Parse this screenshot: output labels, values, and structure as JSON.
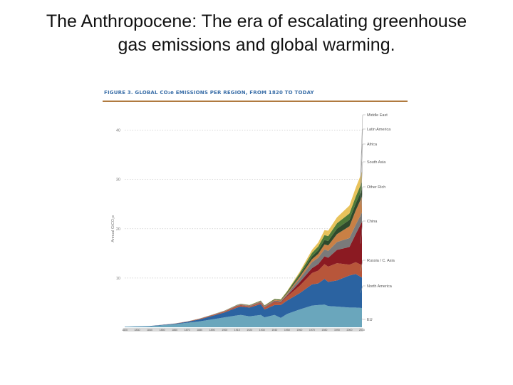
{
  "slide": {
    "title_line1": "The Anthropocene: The era of escalating greenhouse",
    "title_line2": "gas emissions and global warming."
  },
  "chart_data": {
    "type": "area",
    "stacked": true,
    "title": "FIGURE 3. GLOBAL CO₂e EMISSIONS PER REGION, FROM 1820 TO TODAY",
    "ylabel": "Annual GtCO₂e",
    "xlabel": "",
    "xlim": [
      1820,
      2010
    ],
    "ylim": [
      0,
      45
    ],
    "yticks": [
      10,
      20,
      30,
      40
    ],
    "xticks": [
      1820,
      1830,
      1840,
      1850,
      1860,
      1870,
      1880,
      1890,
      1900,
      1910,
      1920,
      1930,
      1940,
      1950,
      1960,
      1970,
      1980,
      1990,
      2000,
      2010
    ],
    "grid": "horizontal-dotted",
    "legend_placement": "right, labels at series ends",
    "x": [
      1820,
      1840,
      1860,
      1870,
      1880,
      1890,
      1900,
      1910,
      1913,
      1920,
      1929,
      1932,
      1940,
      1945,
      1950,
      1960,
      1970,
      1975,
      1980,
      1983,
      1990,
      2000,
      2005,
      2010
    ],
    "series": [
      {
        "name": "EU",
        "color": "#6aa6bc",
        "values": [
          0.1,
          0.2,
          0.6,
          0.9,
          1.2,
          1.6,
          2.0,
          2.4,
          2.5,
          2.2,
          2.5,
          2.0,
          2.5,
          1.9,
          2.7,
          3.6,
          4.4,
          4.5,
          4.6,
          4.3,
          4.2,
          4.0,
          4.0,
          3.9
        ]
      },
      {
        "name": "North America",
        "color": "#2b63a1",
        "values": [
          0.02,
          0.05,
          0.1,
          0.2,
          0.4,
          0.7,
          1.0,
          1.6,
          1.7,
          1.8,
          2.2,
          1.6,
          2.0,
          2.6,
          2.7,
          3.3,
          4.3,
          4.4,
          5.2,
          4.9,
          5.3,
          6.5,
          6.8,
          6.2
        ]
      },
      {
        "name": "Russia / C. Asia",
        "color": "#b8563a",
        "values": [
          0,
          0.01,
          0.05,
          0.05,
          0.1,
          0.15,
          0.2,
          0.3,
          0.3,
          0.2,
          0.3,
          0.4,
          0.6,
          0.5,
          0.8,
          1.5,
          2.3,
          2.6,
          3.0,
          3.1,
          3.5,
          2.2,
          2.4,
          2.5
        ]
      },
      {
        "name": "China",
        "color": "#8b1a22",
        "values": [
          0,
          0,
          0,
          0,
          0.01,
          0.01,
          0.02,
          0.03,
          0.03,
          0.04,
          0.05,
          0.06,
          0.1,
          0.1,
          0.2,
          0.7,
          1.0,
          1.3,
          1.6,
          1.8,
          2.7,
          3.6,
          5.7,
          8.8
        ]
      },
      {
        "name": "Other Rich",
        "color": "#7a7a7a",
        "values": [
          0,
          0,
          0.01,
          0.02,
          0.03,
          0.05,
          0.08,
          0.1,
          0.1,
          0.1,
          0.15,
          0.15,
          0.2,
          0.2,
          0.3,
          0.7,
          1.2,
          1.3,
          1.4,
          1.4,
          1.6,
          1.8,
          1.9,
          1.9
        ]
      },
      {
        "name": "South Asia",
        "color": "#c98045",
        "values": [
          0,
          0,
          0,
          0.01,
          0.01,
          0.02,
          0.04,
          0.06,
          0.07,
          0.08,
          0.1,
          0.1,
          0.15,
          0.15,
          0.2,
          0.4,
          0.6,
          0.8,
          1.0,
          1.1,
          1.6,
          2.4,
          2.9,
          3.2
        ]
      },
      {
        "name": "Africa",
        "color": "#2e4a2c",
        "values": [
          0,
          0,
          0,
          0,
          0.01,
          0.01,
          0.02,
          0.03,
          0.03,
          0.04,
          0.05,
          0.05,
          0.08,
          0.08,
          0.12,
          0.3,
          0.6,
          0.7,
          0.9,
          0.9,
          1.1,
          1.3,
          1.4,
          1.5
        ]
      },
      {
        "name": "Latin America",
        "color": "#4f7a38",
        "values": [
          0,
          0,
          0,
          0,
          0.01,
          0.01,
          0.02,
          0.03,
          0.04,
          0.05,
          0.06,
          0.07,
          0.1,
          0.1,
          0.2,
          0.4,
          0.7,
          0.8,
          1.0,
          1.0,
          1.1,
          1.3,
          1.4,
          1.5
        ]
      },
      {
        "name": "Middle East",
        "color": "#e8c25a",
        "values": [
          0,
          0,
          0,
          0,
          0,
          0,
          0.01,
          0.01,
          0.01,
          0.01,
          0.02,
          0.02,
          0.04,
          0.05,
          0.1,
          0.3,
          0.6,
          0.8,
          1.0,
          1.1,
          1.2,
          1.6,
          1.8,
          2.0
        ]
      }
    ]
  }
}
